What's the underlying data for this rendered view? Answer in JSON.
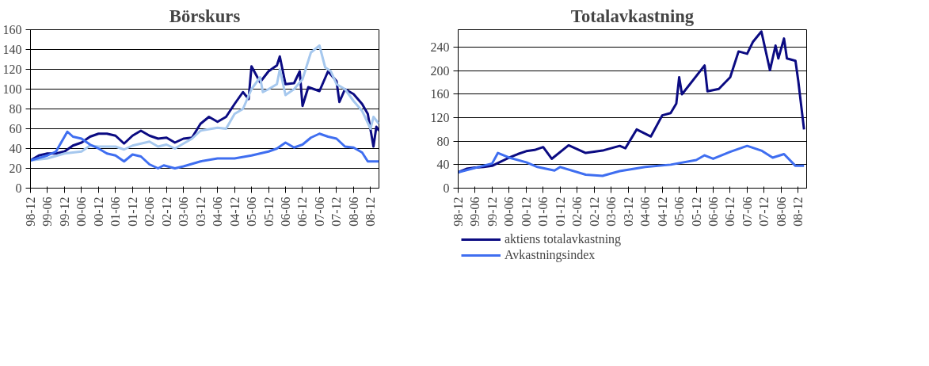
{
  "chart_data": [
    {
      "type": "line",
      "title": "Börskurs",
      "grid": "y",
      "xlim": [
        "1998-12",
        "2009-03"
      ],
      "ylim": [
        0,
        160
      ],
      "yticks": [
        0,
        20,
        40,
        60,
        80,
        100,
        120,
        140,
        160
      ],
      "xticks": [
        {
          "value": "1998-12",
          "label": "98-12"
        },
        {
          "value": "1999-06",
          "label": "99-06"
        },
        {
          "value": "1999-12",
          "label": "99-12"
        },
        {
          "value": "2000-06",
          "label": "00-06"
        },
        {
          "value": "2000-12",
          "label": "00-12"
        },
        {
          "value": "2001-06",
          "label": "01-06"
        },
        {
          "value": "2001-12",
          "label": "01-12"
        },
        {
          "value": "2002-06",
          "label": "02-06"
        },
        {
          "value": "2002-12",
          "label": "02-12"
        },
        {
          "value": "2003-06",
          "label": "03-06"
        },
        {
          "value": "2003-12",
          "label": "03-12"
        },
        {
          "value": "2004-06",
          "label": "04-06"
        },
        {
          "value": "2004-12",
          "label": "04-12"
        },
        {
          "value": "2005-06",
          "label": "05-06"
        },
        {
          "value": "2005-12",
          "label": "05-12"
        },
        {
          "value": "2006-06",
          "label": "06-06"
        },
        {
          "value": "2006-12",
          "label": "06-12"
        },
        {
          "value": "2007-06",
          "label": "07-06"
        },
        {
          "value": "2007-12",
          "label": "07-12"
        },
        {
          "value": "2008-06",
          "label": "08-06"
        },
        {
          "value": "2008-12",
          "label": "08-12"
        }
      ],
      "series": [
        {
          "color": "#0b0b82",
          "x": [
            "1998-12",
            "1999-03",
            "1999-06",
            "1999-09",
            "1999-12",
            "2000-03",
            "2000-06",
            "2000-09",
            "2000-12",
            "2001-03",
            "2001-06",
            "2001-09",
            "2001-12",
            "2002-03",
            "2002-06",
            "2002-09",
            "2002-12",
            "2003-03",
            "2003-06",
            "2003-09",
            "2003-12",
            "2004-03",
            "2004-06",
            "2004-09",
            "2004-12",
            "2005-03",
            "2005-05",
            "2005-06",
            "2005-09",
            "2005-12",
            "2006-03",
            "2006-04",
            "2006-06",
            "2006-09",
            "2006-11",
            "2006-12",
            "2007-02",
            "2007-06",
            "2007-09",
            "2007-12",
            "2008-01",
            "2008-03",
            "2008-06",
            "2008-09",
            "2008-11",
            "2009-01",
            "2009-02",
            "2009-03"
          ],
          "values": [
            28,
            33,
            35,
            35,
            37,
            43,
            46,
            52,
            55,
            55,
            53,
            45,
            53,
            58,
            53,
            50,
            51,
            46,
            50,
            51,
            65,
            72,
            67,
            72,
            85,
            97,
            90,
            123,
            107,
            118,
            124,
            133,
            105,
            106,
            118,
            83,
            102,
            98,
            118,
            108,
            87,
            100,
            95,
            85,
            75,
            42,
            62,
            58
          ]
        },
        {
          "color": "#a6c8ee",
          "x": [
            "1998-12",
            "1999-06",
            "1999-12",
            "2000-06",
            "2000-09",
            "2000-12",
            "2001-06",
            "2001-09",
            "2001-12",
            "2002-06",
            "2002-09",
            "2002-12",
            "2003-03",
            "2003-06",
            "2003-09",
            "2003-12",
            "2004-06",
            "2004-09",
            "2004-12",
            "2005-03",
            "2005-06",
            "2005-09",
            "2005-10",
            "2005-12",
            "2006-03",
            "2006-04",
            "2006-06",
            "2006-09",
            "2006-12",
            "2007-03",
            "2007-06",
            "2007-08",
            "2007-10",
            "2007-12",
            "2008-03",
            "2008-06",
            "2008-09",
            "2008-12",
            "2009-01",
            "2009-03"
          ],
          "values": [
            28,
            30,
            35,
            37,
            43,
            42,
            42,
            39,
            43,
            47,
            42,
            44,
            40,
            45,
            50,
            58,
            61,
            60,
            75,
            80,
            100,
            112,
            97,
            100,
            105,
            120,
            94,
            100,
            110,
            137,
            144,
            122,
            118,
            105,
            100,
            88,
            78,
            60,
            72,
            65
          ]
        },
        {
          "color": "#3f6ef0",
          "x": [
            "1998-12",
            "1999-06",
            "1999-09",
            "2000-01",
            "2000-03",
            "2000-06",
            "2000-09",
            "2000-12",
            "2001-03",
            "2001-06",
            "2001-09",
            "2001-12",
            "2002-03",
            "2002-06",
            "2002-09",
            "2002-11",
            "2003-03",
            "2003-06",
            "2003-12",
            "2004-06",
            "2004-12",
            "2005-06",
            "2005-12",
            "2006-03",
            "2006-06",
            "2006-09",
            "2006-12",
            "2007-03",
            "2007-06",
            "2007-09",
            "2007-12",
            "2008-03",
            "2008-06",
            "2008-09",
            "2008-11",
            "2009-03"
          ],
          "values": [
            28,
            33,
            37,
            57,
            52,
            50,
            44,
            40,
            35,
            33,
            27,
            34,
            32,
            24,
            20,
            23,
            20,
            22,
            27,
            30,
            30,
            33,
            37,
            40,
            46,
            41,
            44,
            51,
            55,
            52,
            50,
            42,
            41,
            36,
            27,
            27
          ]
        }
      ]
    },
    {
      "type": "line",
      "title": "Totalavkastning",
      "grid": "y",
      "legend": "bottom",
      "xlim": [
        "1998-12",
        "2009-03"
      ],
      "ylim": [
        0,
        270
      ],
      "yticks": [
        0,
        40,
        80,
        120,
        160,
        200,
        240
      ],
      "xticks": [
        {
          "value": "1998-12",
          "label": "98-12"
        },
        {
          "value": "1999-06",
          "label": "99-06"
        },
        {
          "value": "1999-12",
          "label": "99-12"
        },
        {
          "value": "2000-06",
          "label": "00-06"
        },
        {
          "value": "2000-12",
          "label": "00-12"
        },
        {
          "value": "2001-06",
          "label": "01-06"
        },
        {
          "value": "2001-12",
          "label": "01-12"
        },
        {
          "value": "2002-06",
          "label": "02-06"
        },
        {
          "value": "2002-12",
          "label": "02-12"
        },
        {
          "value": "2003-06",
          "label": "03-06"
        },
        {
          "value": "2003-12",
          "label": "03-12"
        },
        {
          "value": "2004-06",
          "label": "04-06"
        },
        {
          "value": "2004-12",
          "label": "04-12"
        },
        {
          "value": "2005-06",
          "label": "05-06"
        },
        {
          "value": "2005-12",
          "label": "05-12"
        },
        {
          "value": "2006-06",
          "label": "06-06"
        },
        {
          "value": "2006-12",
          "label": "06-12"
        },
        {
          "value": "2007-06",
          "label": "07-06"
        },
        {
          "value": "2007-12",
          "label": "07-12"
        },
        {
          "value": "2008-06",
          "label": "08-06"
        },
        {
          "value": "2008-12",
          "label": "08-12"
        }
      ],
      "series": [
        {
          "name": "aktiens totalavkastning",
          "color": "#0b0b82",
          "x": [
            "1998-12",
            "1999-03",
            "1999-06",
            "1999-09",
            "1999-12",
            "2000-03",
            "2000-06",
            "2000-09",
            "2000-12",
            "2001-03",
            "2001-06",
            "2001-09",
            "2002-03",
            "2002-09",
            "2003-03",
            "2003-09",
            "2003-11",
            "2004-03",
            "2004-08",
            "2004-12",
            "2005-03",
            "2005-05",
            "2005-06",
            "2005-07",
            "2006-03",
            "2006-04",
            "2006-08",
            "2006-12",
            "2007-03",
            "2007-06",
            "2007-08",
            "2007-11",
            "2008-02",
            "2008-04",
            "2008-05",
            "2008-07",
            "2008-08",
            "2008-11",
            "2008-12",
            "2009-02"
          ],
          "values": [
            27,
            33,
            35,
            36,
            38,
            45,
            52,
            58,
            63,
            65,
            70,
            50,
            73,
            60,
            64,
            72,
            68,
            100,
            88,
            124,
            128,
            144,
            189,
            160,
            209,
            165,
            169,
            189,
            233,
            229,
            249,
            267,
            201,
            243,
            221,
            255,
            221,
            217,
            183,
            100
          ]
        },
        {
          "name": "Avkastningsindex",
          "color": "#3f6ef0",
          "x": [
            "1998-12",
            "1999-12",
            "2000-02",
            "2000-06",
            "2000-12",
            "2001-04",
            "2001-10",
            "2001-12",
            "2002-09",
            "2003-03",
            "2003-09",
            "2004-06",
            "2005-03",
            "2005-12",
            "2006-03",
            "2006-06",
            "2006-12",
            "2007-06",
            "2007-11",
            "2008-03",
            "2008-07",
            "2008-11",
            "2009-02"
          ],
          "values": [
            27,
            42,
            60,
            52,
            44,
            36,
            30,
            36,
            23,
            21,
            29,
            36,
            40,
            48,
            56,
            50,
            62,
            72,
            64,
            52,
            58,
            38,
            38
          ]
        }
      ]
    }
  ]
}
